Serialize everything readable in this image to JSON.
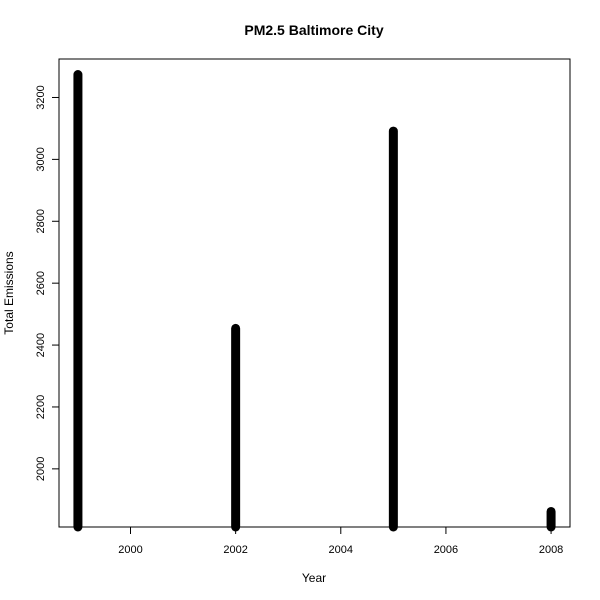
{
  "chart_data": {
    "type": "bar",
    "title": "PM2.5 Baltimore City",
    "xlabel": "Year",
    "ylabel": "Total Emissions",
    "x": [
      1999,
      2002,
      2005,
      2008
    ],
    "values": [
      3274.18,
      2453.92,
      3091.35,
      1862.28
    ],
    "xlim": [
      1998.64,
      2008.36
    ],
    "ylim": [
      1812.12,
      3324.34
    ],
    "xticks": [
      2000,
      2002,
      2004,
      2006,
      2008
    ],
    "yticks": [
      2000,
      2200,
      2400,
      2600,
      2800,
      3000,
      3200
    ],
    "grid": false,
    "bar_color": "#000000"
  }
}
